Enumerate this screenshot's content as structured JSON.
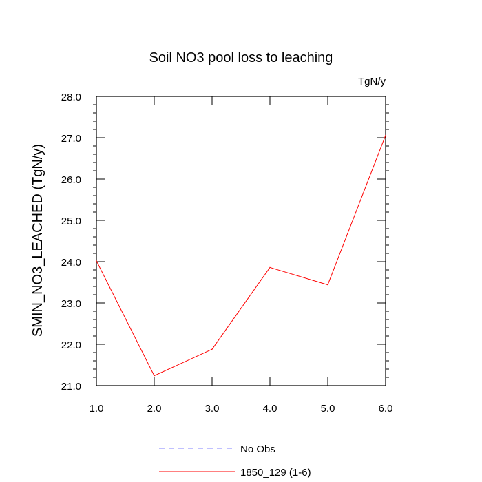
{
  "chart_data": {
    "type": "line",
    "title": "Soil NO3 pool loss to leaching",
    "units_label": "TgN/y",
    "xlabel": "",
    "ylabel": "SMIN_NO3_LEACHED  (TgN/y)",
    "xlim": [
      1.0,
      6.0
    ],
    "ylim": [
      21.0,
      28.0
    ],
    "x_ticks": [
      "1.0",
      "2.0",
      "3.0",
      "4.0",
      "5.0",
      "6.0"
    ],
    "y_ticks": [
      "21.0",
      "22.0",
      "23.0",
      "24.0",
      "25.0",
      "26.0",
      "27.0",
      "28.0"
    ],
    "grid": false,
    "legend_position": "bottom",
    "series": [
      {
        "name": "1850_129 (1-6)",
        "color": "#ff0000",
        "dash": "solid",
        "x": [
          1,
          2,
          3,
          4,
          5,
          6
        ],
        "values": [
          24.02,
          21.24,
          21.88,
          23.86,
          23.44,
          27.06
        ]
      }
    ],
    "legend": [
      {
        "label": "No Obs",
        "color": "#8080ff",
        "dash": "dashed"
      },
      {
        "label": "1850_129 (1-6)",
        "color": "#ff0000",
        "dash": "solid"
      }
    ]
  }
}
